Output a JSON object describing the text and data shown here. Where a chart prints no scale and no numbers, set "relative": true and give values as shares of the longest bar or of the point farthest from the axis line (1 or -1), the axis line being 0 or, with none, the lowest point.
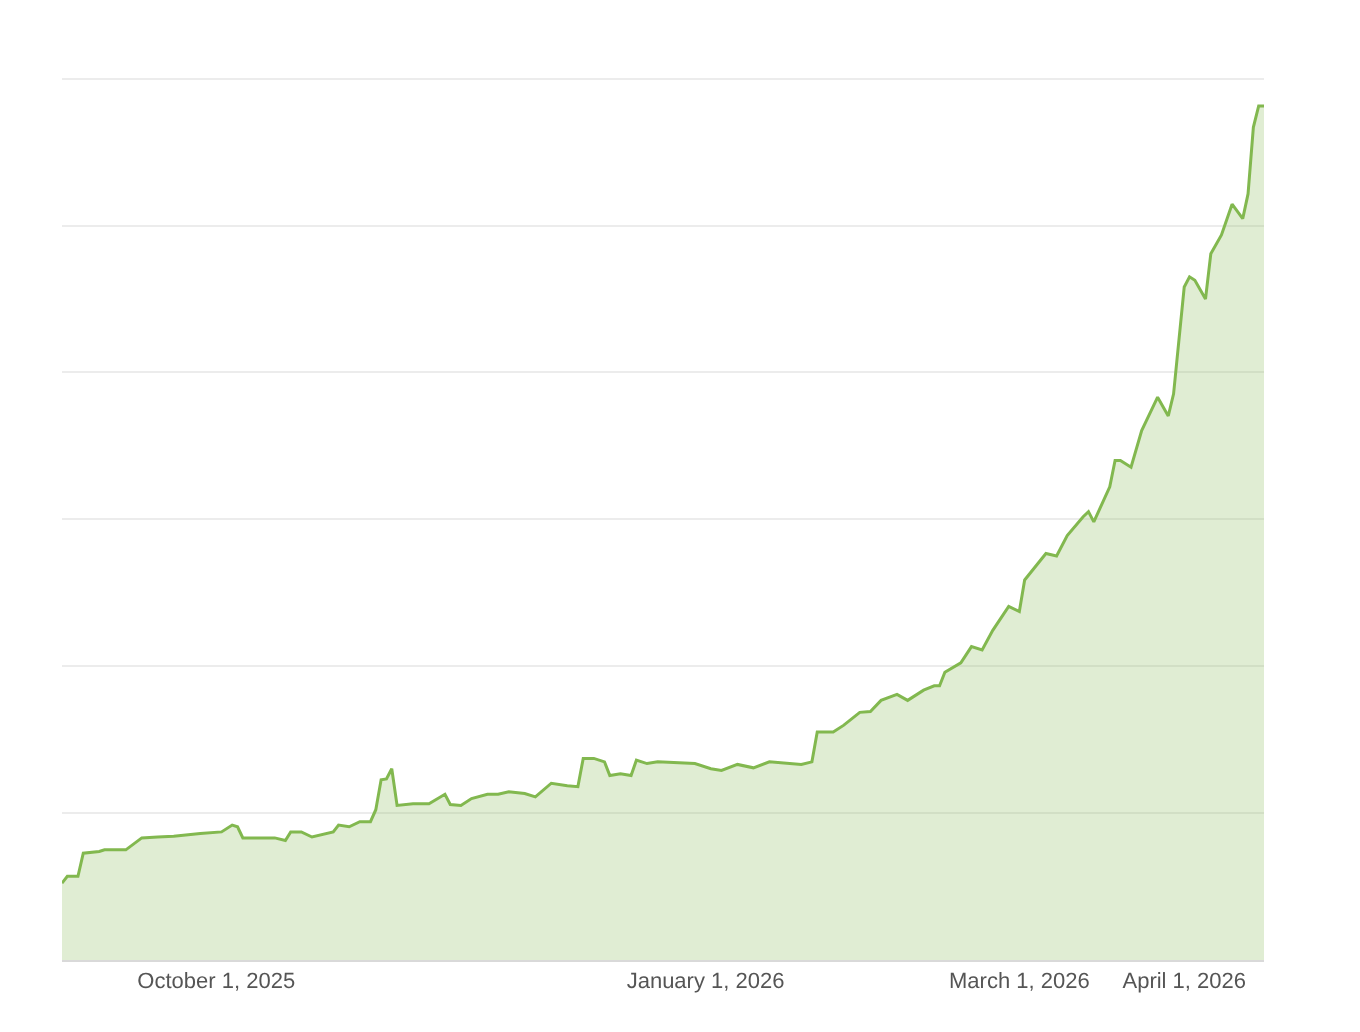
{
  "chart_data": {
    "type": "area",
    "relative": true,
    "grid": "y",
    "xlim": [
      "2025-09-02",
      "2026-04-16"
    ],
    "xticks": [
      {
        "value": "2025-10-01",
        "label": "October 1, 2025"
      },
      {
        "value": "2026-01-01",
        "label": "January 1, 2026"
      },
      {
        "value": "2026-03-01",
        "label": "March 1, 2026"
      },
      {
        "value": "2026-04-01",
        "label": "April 1, 2026"
      }
    ],
    "x": [
      "2025-09-02",
      "2025-09-03",
      "2025-09-05",
      "2025-09-06",
      "2025-09-09",
      "2025-09-10",
      "2025-09-14",
      "2025-09-17",
      "2025-09-20",
      "2025-09-23",
      "2025-09-28",
      "2025-10-02",
      "2025-10-04",
      "2025-10-05",
      "2025-10-06",
      "2025-10-12",
      "2025-10-14",
      "2025-10-15",
      "2025-10-17",
      "2025-10-19",
      "2025-10-23",
      "2025-10-24",
      "2025-10-26",
      "2025-10-28",
      "2025-10-30",
      "2025-10-31",
      "2025-11-01",
      "2025-11-02",
      "2025-11-03",
      "2025-11-04",
      "2025-11-07",
      "2025-11-10",
      "2025-11-13",
      "2025-11-14",
      "2025-11-16",
      "2025-11-18",
      "2025-11-21",
      "2025-11-23",
      "2025-11-25",
      "2025-11-28",
      "2025-11-30",
      "2025-12-03",
      "2025-12-06",
      "2025-12-08",
      "2025-12-09",
      "2025-12-11",
      "2025-12-13",
      "2025-12-14",
      "2025-12-16",
      "2025-12-18",
      "2025-12-19",
      "2025-12-21",
      "2025-12-23",
      "2025-12-30",
      "2026-01-02",
      "2026-01-04",
      "2026-01-07",
      "2026-01-10",
      "2026-01-13",
      "2026-01-19",
      "2026-01-21",
      "2026-01-22",
      "2026-01-25",
      "2026-01-27",
      "2026-01-30",
      "2026-02-01",
      "2026-02-03",
      "2026-02-06",
      "2026-02-08",
      "2026-02-11",
      "2026-02-13",
      "2026-02-14",
      "2026-02-15",
      "2026-02-18",
      "2026-02-20",
      "2026-02-22",
      "2026-02-24",
      "2026-02-27",
      "2026-03-01",
      "2026-03-02",
      "2026-03-06",
      "2026-03-08",
      "2026-03-10",
      "2026-03-13",
      "2026-03-14",
      "2026-03-15",
      "2026-03-18",
      "2026-03-19",
      "2026-03-20",
      "2026-03-22",
      "2026-03-24",
      "2026-03-27",
      "2026-03-29",
      "2026-03-30",
      "2026-04-01",
      "2026-04-02",
      "2026-04-03",
      "2026-04-05",
      "2026-04-06",
      "2026-04-08",
      "2026-04-10",
      "2026-04-12",
      "2026-04-13",
      "2026-04-14",
      "2026-04-15",
      "2026-04-16"
    ],
    "series": [
      {
        "color": "#82b84f",
        "values": [
          0.09,
          0.098,
          0.098,
          0.125,
          0.127,
          0.129,
          0.129,
          0.143,
          0.144,
          0.145,
          0.148,
          0.15,
          0.158,
          0.156,
          0.143,
          0.143,
          0.14,
          0.15,
          0.15,
          0.144,
          0.15,
          0.158,
          0.156,
          0.162,
          0.162,
          0.176,
          0.211,
          0.212,
          0.224,
          0.181,
          0.183,
          0.183,
          0.194,
          0.182,
          0.181,
          0.189,
          0.194,
          0.194,
          0.197,
          0.195,
          0.191,
          0.207,
          0.204,
          0.203,
          0.236,
          0.236,
          0.232,
          0.216,
          0.218,
          0.216,
          0.234,
          0.23,
          0.232,
          0.23,
          0.224,
          0.222,
          0.229,
          0.225,
          0.232,
          0.229,
          0.232,
          0.267,
          0.267,
          0.275,
          0.29,
          0.291,
          0.304,
          0.311,
          0.304,
          0.316,
          0.321,
          0.321,
          0.337,
          0.348,
          0.367,
          0.363,
          0.386,
          0.414,
          0.408,
          0.445,
          0.476,
          0.473,
          0.497,
          0.519,
          0.525,
          0.513,
          0.554,
          0.585,
          0.585,
          0.577,
          0.62,
          0.659,
          0.637,
          0.663,
          0.788,
          0.8,
          0.796,
          0.774,
          0.827,
          0.849,
          0.885,
          0.868,
          0.897,
          0.975,
          1.0,
          1.0
        ]
      }
    ]
  }
}
